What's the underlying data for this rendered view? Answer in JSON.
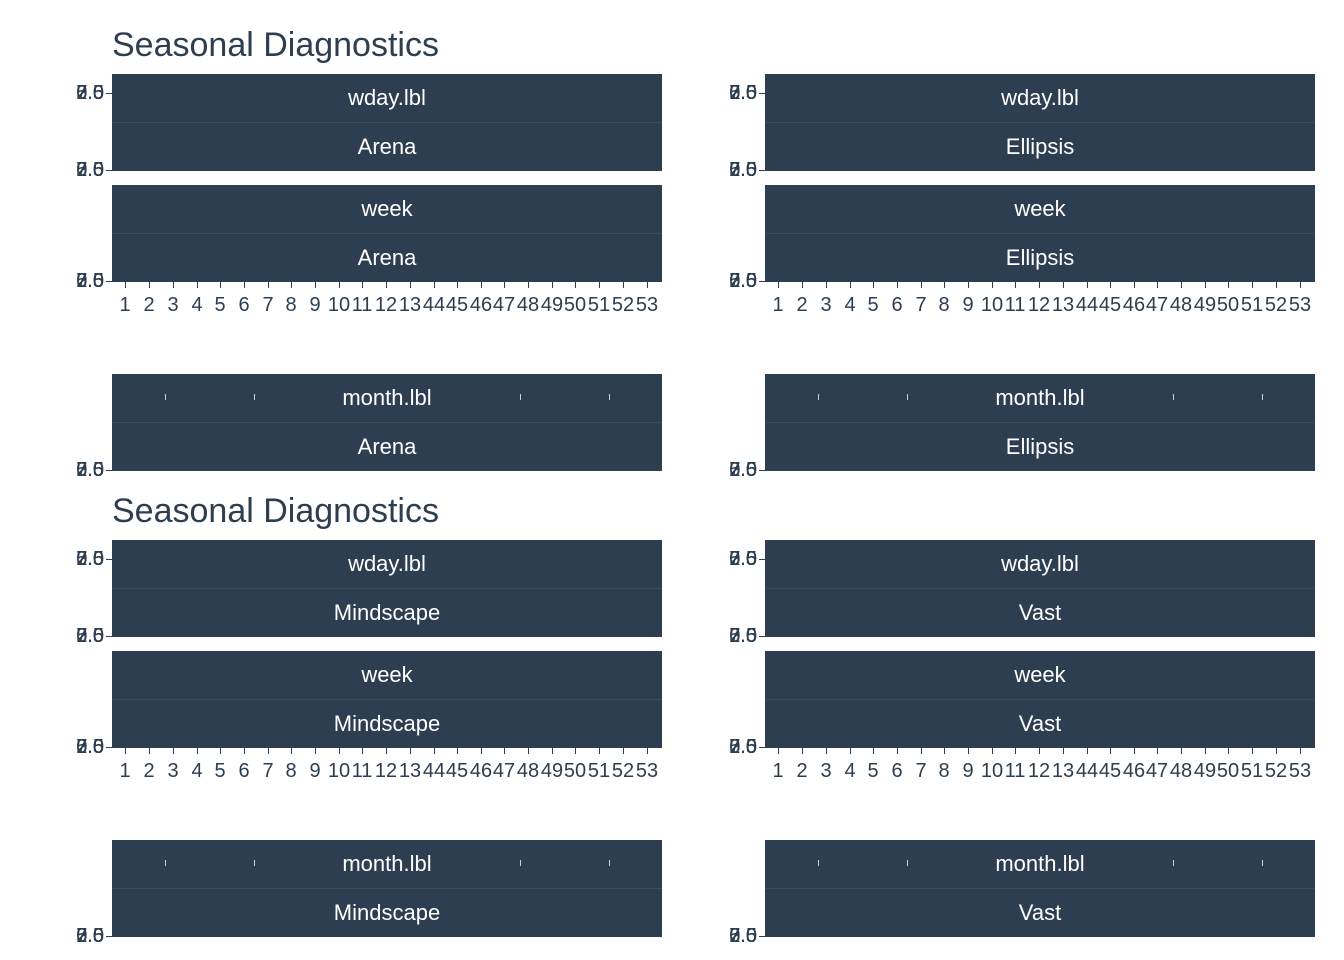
{
  "chart_data": [
    {
      "type": "line",
      "title": "Seasonal Diagnostics",
      "panels": [
        {
          "group": "Arena",
          "features": [
            "wday.lbl",
            "week",
            "month.lbl"
          ]
        },
        {
          "group": "Ellipsis",
          "features": [
            "wday.lbl",
            "week",
            "month.lbl"
          ]
        }
      ],
      "x_week_ticks": [
        "1",
        "2",
        "3",
        "4",
        "5",
        "6",
        "7",
        "8",
        "9",
        "10",
        "11",
        "12",
        "13",
        "44",
        "45",
        "46",
        "47",
        "48",
        "49",
        "50",
        "51",
        "52",
        "53"
      ],
      "y_tick_labels": [
        "7.5",
        "5.0",
        "2.5",
        "0.0"
      ]
    },
    {
      "type": "line",
      "title": "Seasonal Diagnostics",
      "panels": [
        {
          "group": "Mindscape",
          "features": [
            "wday.lbl",
            "week",
            "month.lbl"
          ]
        },
        {
          "group": "Vast",
          "features": [
            "wday.lbl",
            "week",
            "month.lbl"
          ]
        }
      ],
      "x_week_ticks": [
        "1",
        "2",
        "3",
        "4",
        "5",
        "6",
        "7",
        "8",
        "9",
        "10",
        "11",
        "12",
        "13",
        "44",
        "45",
        "46",
        "47",
        "48",
        "49",
        "50",
        "51",
        "52",
        "53"
      ],
      "y_tick_labels": [
        "7.5",
        "5.0",
        "2.5",
        "0.0"
      ]
    }
  ],
  "colors": {
    "strip": "#2c3e50",
    "strip_text": "#ffffff",
    "text": "#2c3e50"
  }
}
